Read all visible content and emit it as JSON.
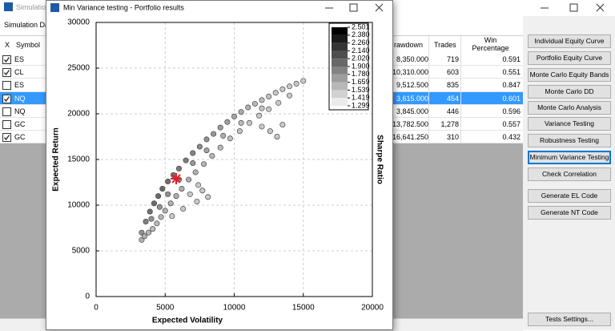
{
  "background_window": {
    "title": "Simulatio",
    "tab": "Simulation Da",
    "left_table": {
      "headers": [
        "X",
        "Symbol"
      ],
      "rows": [
        {
          "checked": true,
          "symbol": "ES"
        },
        {
          "checked": true,
          "symbol": "CL"
        },
        {
          "checked": false,
          "symbol": "ES"
        },
        {
          "checked": true,
          "symbol": "NQ"
        },
        {
          "checked": false,
          "symbol": "NQ"
        },
        {
          "checked": false,
          "symbol": "GC"
        },
        {
          "checked": true,
          "symbol": "GC"
        }
      ]
    },
    "right_table": {
      "headers": [
        "rawdown",
        "Trades",
        "Win Percentage"
      ],
      "rows": [
        [
          "8,350.000",
          "719",
          "0.591"
        ],
        [
          "10,310.000",
          "603",
          "0.551"
        ],
        [
          "9,512.500",
          "835",
          "0.847"
        ],
        [
          "3,615.000",
          "454",
          "0.601"
        ],
        [
          "3,845.000",
          "446",
          "0.596"
        ],
        [
          "13,782.500",
          "1,278",
          "0.557"
        ],
        [
          "16,641.250",
          "310",
          "0.432"
        ]
      ]
    },
    "selected_row": 3,
    "buttons": [
      "Individual Equity Curve",
      "Portfolio Equity Curve",
      "Monte Carlo Equity Bands",
      "Monte Carlo DD",
      "Monte Carlo Analysis",
      "Variance Testing",
      "Robustness Testing",
      "Minimum Variance Testing",
      "Check Correlation",
      "Generate EL Code",
      "Generate NT Code",
      "Tests Settings..."
    ],
    "focused_button": 7
  },
  "chart_window": {
    "title": "Min Variance testing - Portfolio results"
  },
  "chart_data": {
    "type": "scatter",
    "x_label": "Expected Volatility",
    "y_label": "Expected Return",
    "y2_label": "Sharpe Ratio",
    "xlim": [
      0,
      20000
    ],
    "xticks": [
      0,
      5000,
      10000,
      15000,
      20000
    ],
    "ylim": [
      0,
      30000
    ],
    "yticks": [
      0,
      5000,
      10000,
      15000,
      20000,
      25000,
      30000
    ],
    "grid": true,
    "series": [
      {
        "color": "#9a9a9a",
        "x": [
          3300,
          3600,
          3900,
          4200,
          4500,
          4800,
          5200,
          5600,
          6000,
          6500,
          7000,
          7500,
          8000,
          8500,
          9000,
          9500,
          10000,
          10500,
          11000,
          11500,
          12000,
          12500,
          13000,
          13500,
          14000,
          14500,
          15000,
          3300,
          3500,
          3800,
          4100,
          4400,
          4700,
          5000,
          5400,
          5800,
          6200,
          6700,
          7200,
          7800,
          8400,
          9000,
          9700,
          10400,
          11100,
          11800,
          12500,
          13200,
          14000,
          4000,
          4600,
          5200,
          6000,
          7000,
          8000,
          9200,
          10500,
          12000,
          5500,
          6300,
          7300,
          7700,
          8100,
          6800,
          7400,
          12600,
          13100,
          13500,
          12000
        ],
        "y": [
          7000,
          8200,
          9300,
          10200,
          11000,
          11800,
          12600,
          13300,
          14000,
          14900,
          15700,
          16400,
          17200,
          17800,
          18500,
          19100,
          19700,
          20200,
          20700,
          21100,
          21500,
          21900,
          22300,
          22700,
          23000,
          23300,
          23600,
          6200,
          6600,
          7000,
          7400,
          8000,
          8700,
          9400,
          10200,
          11000,
          11800,
          12800,
          13600,
          14500,
          15400,
          16300,
          17300,
          18100,
          19000,
          19800,
          20500,
          21200,
          22000,
          8500,
          9800,
          11200,
          12800,
          14600,
          16000,
          17600,
          19000,
          20600,
          8800,
          9600,
          10400,
          11600,
          10900,
          11200,
          12200,
          18100,
          17500,
          18800,
          18600
        ]
      }
    ],
    "highlight": {
      "x": 5800,
      "y": 12900,
      "color": "#e0202a"
    },
    "colorbar": {
      "ticks": [
        2.501,
        {
          "value": 2.38,
          "label": "2.380"
        },
        {
          "value": 2.26,
          "label": "2.260"
        },
        {
          "value": 2.14,
          "label": "2.140"
        },
        {
          "value": 2.02,
          "label": "2.020"
        },
        {
          "value": 1.9,
          "label": "1.900"
        },
        {
          "value": 1.78,
          "label": "1.780"
        },
        1.659,
        1.539,
        1.419,
        1.299
      ]
    }
  }
}
